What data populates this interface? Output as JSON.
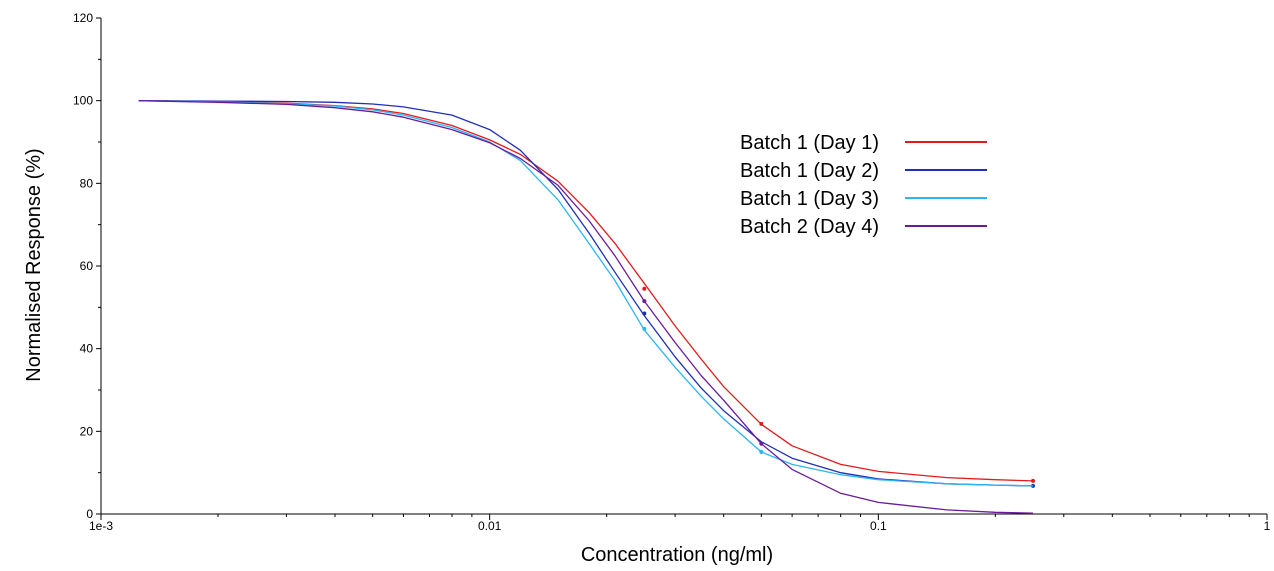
{
  "chart_data": {
    "type": "line",
    "xlabel": "Concentration (ng/ml)",
    "ylabel": "Normalised Response (%)",
    "xscale": "log",
    "xlim": [
      0.001,
      1
    ],
    "ylim": [
      0,
      120
    ],
    "x_ticks": [
      {
        "value": 0.001,
        "label": "1e-3"
      },
      {
        "value": 0.01,
        "label": "0.01"
      },
      {
        "value": 0.1,
        "label": "0.1"
      },
      {
        "value": 1,
        "label": "1"
      }
    ],
    "y_ticks": [
      0,
      20,
      40,
      60,
      80,
      100,
      120
    ],
    "grid": false,
    "legend_position": "top-right",
    "series": [
      {
        "name": "Batch 1 (Day 1)",
        "color": "#e31a1c",
        "x": [
          0.00125,
          0.002,
          0.003,
          0.004,
          0.005,
          0.006,
          0.008,
          0.01,
          0.012,
          0.015,
          0.018,
          0.021,
          0.025,
          0.03,
          0.035,
          0.04,
          0.05,
          0.06,
          0.08,
          0.1,
          0.15,
          0.2,
          0.25
        ],
        "y": [
          100,
          99.8,
          99.4,
          98.8,
          98.0,
          96.9,
          94.0,
          90.5,
          87.0,
          80.5,
          73.0,
          65.5,
          55.8,
          45.5,
          37.5,
          30.8,
          21.7,
          16.5,
          12.0,
          10.3,
          8.8,
          8.3,
          8.0
        ],
        "markers_x": [
          0.025,
          0.05,
          0.25
        ],
        "markers_y": [
          54.5,
          21.8,
          8.0
        ]
      },
      {
        "name": "Batch 1 (Day 2)",
        "color": "#1f2fb8",
        "x": [
          0.00125,
          0.002,
          0.003,
          0.004,
          0.005,
          0.006,
          0.008,
          0.01,
          0.012,
          0.015,
          0.018,
          0.021,
          0.025,
          0.03,
          0.035,
          0.04,
          0.05,
          0.06,
          0.08,
          0.1,
          0.15,
          0.2,
          0.25
        ],
        "y": [
          100,
          99.9,
          99.8,
          99.6,
          99.2,
          98.5,
          96.5,
          93.0,
          88.0,
          78.5,
          68.0,
          58.5,
          48.0,
          38.0,
          30.5,
          25.0,
          17.5,
          13.5,
          10.0,
          8.5,
          7.3,
          7.0,
          6.8
        ],
        "markers_x": [
          0.025,
          0.25
        ],
        "markers_y": [
          48.5,
          6.8
        ]
      },
      {
        "name": "Batch 1 (Day 3)",
        "color": "#29b6f6",
        "x": [
          0.00125,
          0.002,
          0.003,
          0.004,
          0.005,
          0.006,
          0.008,
          0.01,
          0.012,
          0.015,
          0.018,
          0.021,
          0.025,
          0.03,
          0.035,
          0.04,
          0.05,
          0.06,
          0.08,
          0.1,
          0.15,
          0.2,
          0.25
        ],
        "y": [
          100,
          99.7,
          99.3,
          98.7,
          97.8,
          96.5,
          93.5,
          90.0,
          85.5,
          76.0,
          65.5,
          56.5,
          44.5,
          35.5,
          28.5,
          23.0,
          15.0,
          12.0,
          9.5,
          8.3,
          7.3,
          7.0,
          6.8
        ],
        "markers_x": [
          0.025,
          0.05
        ],
        "markers_y": [
          44.8,
          15.0
        ]
      },
      {
        "name": "Batch 2 (Day 4)",
        "color": "#6a1b9a",
        "x": [
          0.00125,
          0.002,
          0.003,
          0.004,
          0.005,
          0.006,
          0.008,
          0.01,
          0.012,
          0.015,
          0.018,
          0.021,
          0.025,
          0.03,
          0.035,
          0.04,
          0.05,
          0.06,
          0.08,
          0.1,
          0.15,
          0.2,
          0.25
        ],
        "y": [
          100,
          99.6,
          99.1,
          98.3,
          97.3,
          96.0,
          93.0,
          89.8,
          86.0,
          79.5,
          71.0,
          62.5,
          51.5,
          41.5,
          33.5,
          27.5,
          17.0,
          10.8,
          5.0,
          2.8,
          1.0,
          0.4,
          0.2
        ],
        "markers_x": [
          0.025,
          0.05
        ],
        "markers_y": [
          51.5,
          17.0
        ]
      }
    ]
  }
}
